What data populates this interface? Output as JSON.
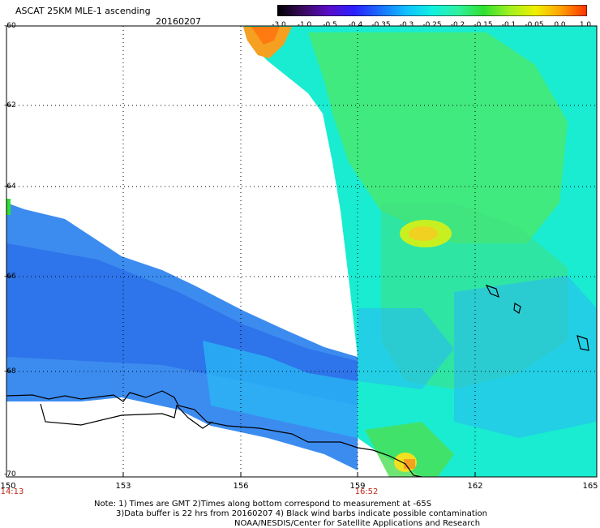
{
  "header": {
    "title": "ASCAT 25KM MLE-1 ascending",
    "date": "20160207"
  },
  "colorbar": {
    "ticks": [
      "-3.0",
      "-1.0",
      "-0.5",
      "-0.4",
      "-0.35",
      "-0.3",
      "-0.25",
      "-0.2",
      "-0.15",
      "-0.1",
      "-0.05",
      "0.0",
      "1.0"
    ],
    "colors": [
      "#000000",
      "#3a0a5e",
      "#5a0cc8",
      "#2a20ff",
      "#1a70ff",
      "#10c0ff",
      "#10f0e0",
      "#30f0a0",
      "#30e030",
      "#a0f020",
      "#f0f000",
      "#ffa000",
      "#ff3000"
    ]
  },
  "axes": {
    "lat_labels": [
      "-60",
      "-62",
      "-64",
      "-66",
      "-68",
      "-70"
    ],
    "lon_labels": [
      "150",
      "153",
      "156",
      "159",
      "162",
      "165"
    ],
    "time_labels": [
      "14:13",
      "16:52"
    ]
  },
  "notes": [
    "Note: 1) Times are GMT 2)Times along bottom correspond to measurement at -65S",
    "3)Data buffer is 22 hrs from 20160207 4) Black wind barbs indicate possible contamination",
    "NOAA/NESDIS/Center for Satellite Applications and Research"
  ]
}
